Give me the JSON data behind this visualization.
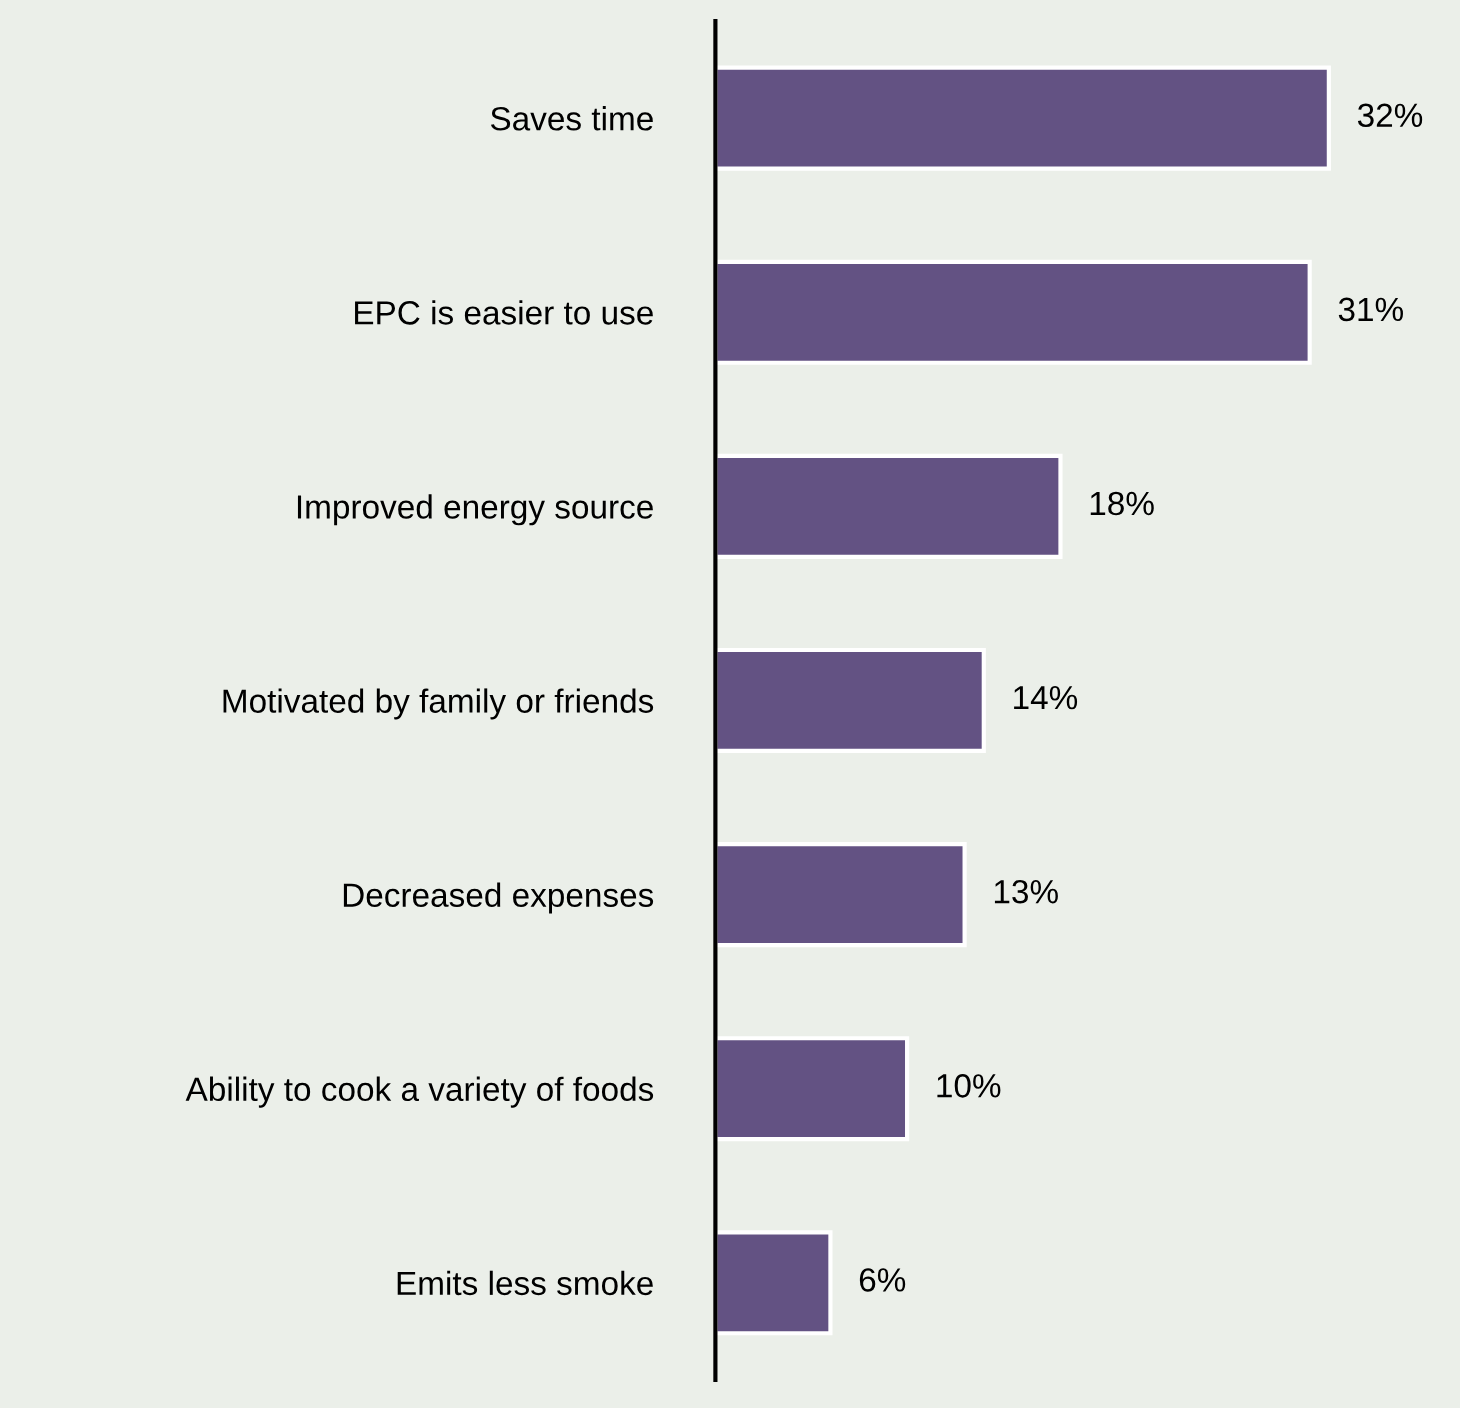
{
  "chart_data": {
    "type": "bar",
    "orientation": "horizontal",
    "categories": [
      "Saves time",
      "EPC is easier to use",
      "Improved energy source",
      "Motivated by family or friends",
      "Decreased expenses",
      "Ability to cook a variety of foods",
      "Emits less smoke"
    ],
    "values": [
      32,
      31,
      18,
      14,
      13,
      10,
      6
    ],
    "value_labels": [
      "32%",
      "31%",
      "18%",
      "14%",
      "13%",
      "10%",
      "6%"
    ],
    "color": "#635283",
    "grid": false,
    "legend": false
  }
}
